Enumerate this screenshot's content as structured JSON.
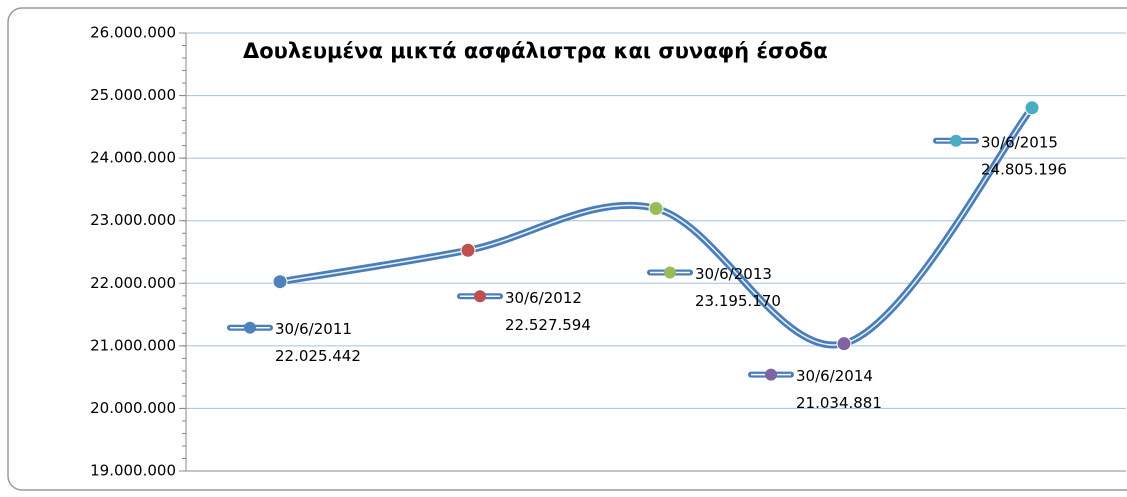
{
  "chart_data": {
    "type": "line",
    "title": "Δουλευμένα μικτά ασφάλιστρα και συναφή έσοδα",
    "categories": [
      "30/6/2011",
      "30/6/2012",
      "30/6/2013",
      "30/6/2014",
      "30/6/2015"
    ],
    "series": [
      {
        "color": "#4a7ebb",
        "point_colors": [
          "#4f81bd",
          "#c0504d",
          "#9bbb59",
          "#8064a2",
          "#4bacc6"
        ],
        "values": [
          22025442,
          22527594,
          23195170,
          21034881,
          24805196
        ],
        "value_labels": [
          "22.025.442",
          "22.527.594",
          "23.195.170",
          "21.034.881",
          "24.805.196"
        ]
      }
    ],
    "smooth": true,
    "ylim": [
      19000000,
      26000000
    ],
    "yticks": [
      {
        "value": 19000000,
        "label": "19.000.000"
      },
      {
        "value": 20000000,
        "label": "20.000.000"
      },
      {
        "value": 21000000,
        "label": "21.000.000"
      },
      {
        "value": 22000000,
        "label": "22.000.000"
      },
      {
        "value": 23000000,
        "label": "23.000.000"
      },
      {
        "value": 24000000,
        "label": "24.000.000"
      },
      {
        "value": 25000000,
        "label": "25.000.000"
      },
      {
        "value": 26000000,
        "label": "26.000.000"
      }
    ],
    "grid": true
  }
}
